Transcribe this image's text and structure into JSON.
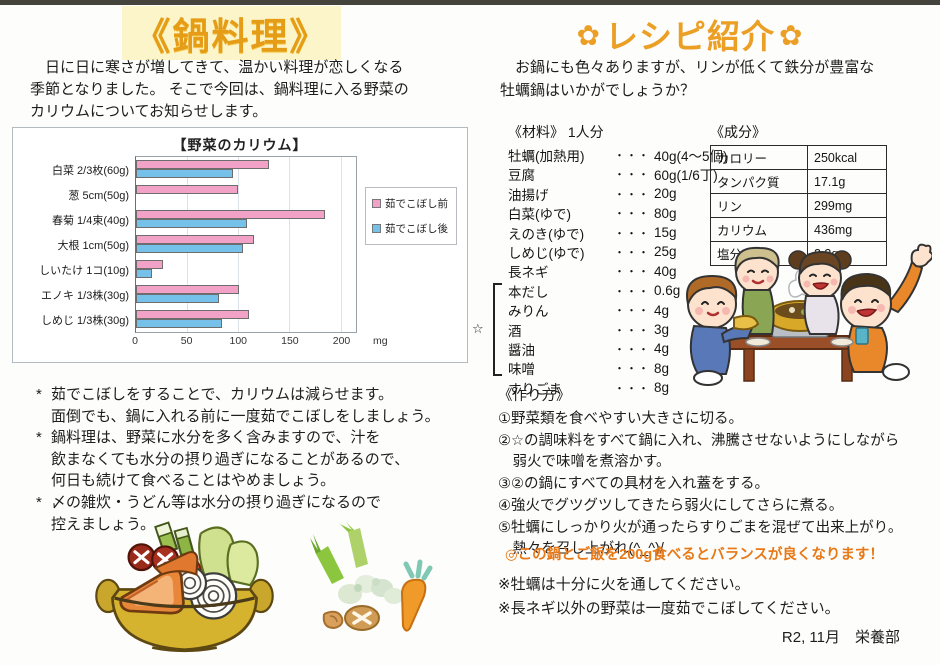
{
  "left": {
    "title": "《鍋料理》",
    "intro": "　日に日に寒さが増してきて、温かい料理が恋しくなる\n季節となりました。 そこで今回は、鍋料理に入る野菜の\nカリウムについてお知らせします。",
    "notes": [
      {
        "marker": "*",
        "text": "茹でこぼしをすることで、カリウムは減らせます。\n面倒でも、鍋に入れる前に一度茹でこぼしをしましょう。"
      },
      {
        "marker": "*",
        "text": "鍋料理は、野菜に水分を多く含みますので、汁を\n飲まなくても水分の摂り過ぎになることがあるので、\n何日も続けて食べることはやめましょう。"
      },
      {
        "marker": "*",
        "text": "〆の雑炊・うどん等は水分の摂り過ぎになるので\n控えましょう。"
      }
    ]
  },
  "chart_data": {
    "type": "bar",
    "orientation": "horizontal",
    "title": "【野菜のカリウム】",
    "categories": [
      "白菜 2/3枚(60g)",
      "葱 5cm(50g)",
      "春菊 1/4束(40g)",
      "大根 1cm(50g)",
      "しいたけ 1コ(10g)",
      "エノキ 1/3株(30g)",
      "しめじ 1/3株(30g)"
    ],
    "series": [
      {
        "name": "茹でこぼし前",
        "color": "#f2a2c6",
        "values": [
          130,
          100,
          185,
          115,
          26,
          101,
          110
        ]
      },
      {
        "name": "茹でこぼし後",
        "color": "#76c1ea",
        "values": [
          95,
          0,
          108,
          105,
          16,
          81,
          84
        ]
      }
    ],
    "xlim": [
      0,
      200
    ],
    "plot_max": 215,
    "xticks": [
      0,
      50,
      100,
      150,
      200
    ],
    "unit": "mg",
    "grid": true,
    "legend_position": "right"
  },
  "right": {
    "flower": "✿",
    "title": "レシピ紹介",
    "intro": "　お鍋にも色々ありますが、リンが低くて鉄分が豊富な\n牡蠣鍋はいかがでしょうか？",
    "ingredients": {
      "header": "《材料》 1人分",
      "dots": "・・・",
      "seasoning_mark": "☆",
      "main_items": [
        {
          "name": "牡蠣(加熱用)",
          "amount": "40g(4～5個)"
        },
        {
          "name": "豆腐",
          "amount": "60g(1/6丁)"
        },
        {
          "name": "油揚げ",
          "amount": "20g"
        },
        {
          "name": "白菜(ゆで)",
          "amount": "80g"
        },
        {
          "name": "えのき(ゆで)",
          "amount": "15g"
        },
        {
          "name": "しめじ(ゆで)",
          "amount": "25g"
        },
        {
          "name": "長ネギ",
          "amount": "40g"
        }
      ],
      "seasoning_items": [
        {
          "name": "本だし",
          "amount": "0.6g"
        },
        {
          "name": "みりん",
          "amount": "4g"
        },
        {
          "name": "酒",
          "amount": "3g"
        },
        {
          "name": "醤油",
          "amount": "4g"
        },
        {
          "name": "味噌",
          "amount": "8g"
        }
      ],
      "final_items": [
        {
          "name": "すりごま",
          "amount": "8g"
        }
      ]
    },
    "nutrition": {
      "header": "《成分》",
      "rows": [
        [
          "カロリー",
          "250kcal"
        ],
        [
          "タンパク質",
          "17.1g"
        ],
        [
          "リン",
          "299mg"
        ],
        [
          "カリウム",
          "436mg"
        ],
        [
          "塩分",
          "2.3g"
        ]
      ]
    },
    "instructions": {
      "header": "《作り方》",
      "steps": [
        "①野菜類を食べやすい大きさに切る。",
        "②☆の調味料をすべて鍋に入れ、沸騰させないようにしながら\n　弱火で味噌を煮溶かす。",
        "③②の鍋にすべての具材を入れ蓋をする。",
        "④強火でグツグツしてきたら弱火にしてさらに煮る。",
        "⑤牡蠣にしっかり火が通ったらすりごまを混ぜて出来上がり。\n　熱々を召し上がれ(^_^)/"
      ]
    },
    "highlight": "◎この鍋とご飯を200g食べるとバランスが良くなります！",
    "footnotes": [
      "※牡蠣は十分に火を通してください。",
      "※長ネギ以外の野菜は一度茹でこぼしてください。"
    ],
    "signature": "R2, 11月　栄養部"
  },
  "colors": {
    "title_gold": "#e59c16",
    "accent_orange": "#e87918",
    "bar_before": "#f2a2c6",
    "bar_after": "#76c1ea"
  }
}
